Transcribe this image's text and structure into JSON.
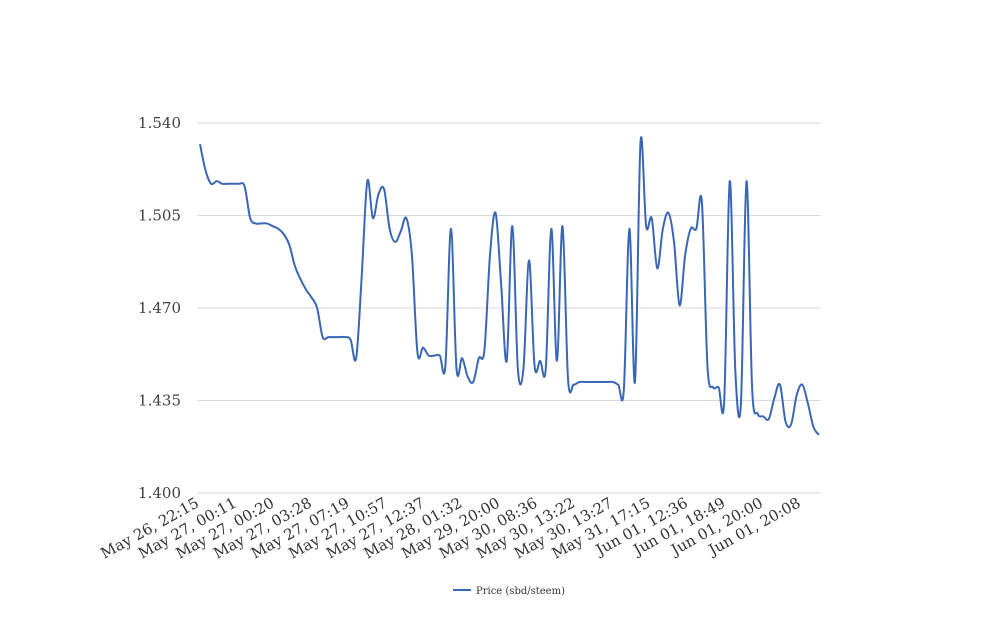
{
  "chart_data": {
    "type": "line",
    "title": "",
    "xlabel": "",
    "ylabel": "",
    "ylim": [
      1.4,
      1.54
    ],
    "y_ticks": [
      "1.540",
      "1.505",
      "1.470",
      "1.435",
      "1.400"
    ],
    "x_tick_labels": [
      "May 26, 22:15",
      "May 27, 00:11",
      "May 27, 00:20",
      "May 27, 03:28",
      "May 27, 07:19",
      "May 27, 10:57",
      "May 27, 12:37",
      "May 28, 01:32",
      "May 29, 20:00",
      "May 30, 08:36",
      "May 30, 13:22",
      "May 30, 13:27",
      "May 31, 17:15",
      "Jun 01, 12:36",
      "Jun 01, 18:49",
      "Jun 01, 20:00",
      "Jun 01, 20:08"
    ],
    "grid": "horizontal",
    "legend_position": "bottom",
    "series": [
      {
        "name": "Price (sbd/steem)",
        "color": "#3a67b5",
        "values": [
          1.532,
          1.522,
          1.517,
          1.518,
          1.517,
          1.517,
          1.517,
          1.517,
          1.516,
          1.504,
          1.502,
          1.502,
          1.502,
          1.501,
          1.5,
          1.498,
          1.494,
          1.486,
          1.481,
          1.477,
          1.474,
          1.47,
          1.459,
          1.459,
          1.459,
          1.459,
          1.459,
          1.458,
          1.451,
          1.482,
          1.518,
          1.504,
          1.513,
          1.515,
          1.5,
          1.495,
          1.499,
          1.504,
          1.49,
          1.453,
          1.455,
          1.452,
          1.452,
          1.452,
          1.448,
          1.5,
          1.447,
          1.451,
          1.444,
          1.442,
          1.451,
          1.454,
          1.49,
          1.506,
          1.479,
          1.45,
          1.501,
          1.447,
          1.447,
          1.488,
          1.448,
          1.45,
          1.447,
          1.5,
          1.45,
          1.501,
          1.443,
          1.441,
          1.442,
          1.442,
          1.442,
          1.442,
          1.442,
          1.442,
          1.442,
          1.441,
          1.439,
          1.5,
          1.442,
          1.533,
          1.501,
          1.504,
          1.485,
          1.5,
          1.506,
          1.495,
          1.471,
          1.49,
          1.5,
          1.5,
          1.51,
          1.448,
          1.44,
          1.44,
          1.435,
          1.518,
          1.446,
          1.434,
          1.518,
          1.44,
          1.43,
          1.429,
          1.428,
          1.436,
          1.441,
          1.427,
          1.426,
          1.437,
          1.441,
          1.434,
          1.425,
          1.422
        ]
      }
    ]
  }
}
